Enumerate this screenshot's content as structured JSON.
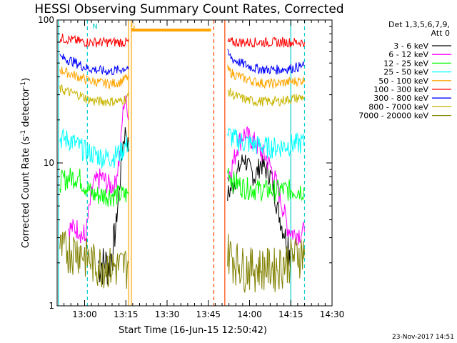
{
  "chart_data": {
    "type": "line",
    "title": "HESSI Observing Summary Count Rates, Corrected",
    "xlabel": "Start Time (16-Jun-15 12:50:42)",
    "ylabel_prefix": "Corrected Count Rate (s",
    "ylabel_sup1": "-1",
    "ylabel_mid": " detector",
    "ylabel_sup2": "-1",
    "ylabel_suffix": ")",
    "yscale": "log",
    "ylim": [
      1,
      100
    ],
    "xlim_minutes": [
      770,
      870
    ],
    "x_ticks": [
      {
        "t": 780,
        "label": "13:00"
      },
      {
        "t": 795,
        "label": "13:15"
      },
      {
        "t": 810,
        "label": "13:30"
      },
      {
        "t": 825,
        "label": "13:45"
      },
      {
        "t": 840,
        "label": "14:00"
      },
      {
        "t": 855,
        "label": "14:15"
      },
      {
        "t": 870,
        "label": "14:30"
      }
    ],
    "y_ticks": [
      {
        "v": 1,
        "label": "1"
      },
      {
        "v": 10,
        "label": "10"
      },
      {
        "v": 100,
        "label": "100"
      }
    ],
    "legend_header": [
      "Det 1,3,5,6,7,9,",
      "Att 0"
    ],
    "legend_position": "right",
    "series": [
      {
        "name": "3 - 6 keV",
        "color": "#000000",
        "segments": [
          [
            [
              785,
              2.0
            ],
            [
              789,
              2.0
            ],
            [
              791,
              3.0
            ],
            [
              793,
              8.0
            ],
            [
              794,
              14.0
            ],
            [
              795,
              17.0
            ],
            [
              796,
              12.0
            ]
          ],
          [
            [
              832,
              6.0
            ],
            [
              834,
              7.0
            ],
            [
              836,
              9.0
            ],
            [
              838,
              11.0
            ],
            [
              840,
              9.0
            ],
            [
              842,
              8.0
            ],
            [
              844,
              10.0
            ],
            [
              846,
              9.0
            ],
            [
              848,
              8.0
            ],
            [
              850,
              5.0
            ],
            [
              852,
              3.5
            ],
            [
              855,
              2.5
            ]
          ]
        ]
      },
      {
        "name": "6 - 12 keV",
        "color": "#ff00ff",
        "segments": [
          [
            [
              774,
              3.5
            ],
            [
              778,
              3.5
            ],
            [
              780,
              2.8
            ],
            [
              783,
              7.0
            ],
            [
              786,
              8.0
            ],
            [
              789,
              7.0
            ],
            [
              791,
              7.0
            ],
            [
              793,
              12.0
            ],
            [
              794,
              24.0
            ],
            [
              795,
              28.0
            ],
            [
              796,
              20.0
            ]
          ],
          [
            [
              832,
              8.0
            ],
            [
              834,
              10.0
            ],
            [
              836,
              14.0
            ],
            [
              838,
              16.0
            ],
            [
              840,
              15.0
            ],
            [
              842,
              14.0
            ],
            [
              844,
              12.0
            ],
            [
              846,
              11.0
            ],
            [
              848,
              9.0
            ],
            [
              850,
              7.0
            ],
            [
              852,
              5.0
            ],
            [
              854,
              3.5
            ],
            [
              856,
              3.2
            ],
            [
              860,
              3.3
            ]
          ]
        ]
      },
      {
        "name": "12 - 25 keV",
        "color": "#00ff00",
        "segments": [
          [
            [
              771,
              7.5
            ],
            [
              775,
              8.0
            ],
            [
              778,
              8.0
            ],
            [
              780,
              7.0
            ],
            [
              783,
              6.0
            ],
            [
              786,
              6.0
            ],
            [
              790,
              6.0
            ],
            [
              793,
              6.0
            ],
            [
              796,
              6.0
            ]
          ],
          [
            [
              832,
              9.0
            ],
            [
              834,
              7.5
            ],
            [
              838,
              6.8
            ],
            [
              842,
              6.6
            ],
            [
              846,
              6.5
            ],
            [
              850,
              6.5
            ],
            [
              855,
              6.5
            ],
            [
              860,
              6.5
            ]
          ]
        ]
      },
      {
        "name": "25 - 50 keV",
        "color": "#00ffff",
        "segments": [
          [
            [
              771,
              15.0
            ],
            [
              775,
              14.5
            ],
            [
              778,
              13.0
            ],
            [
              781,
              12.0
            ],
            [
              784,
              11.5
            ],
            [
              787,
              11.0
            ],
            [
              790,
              11.0
            ],
            [
              793,
              12.0
            ],
            [
              796,
              14.0
            ]
          ],
          [
            [
              832,
              16.0
            ],
            [
              834,
              15.0
            ],
            [
              838,
              14.0
            ],
            [
              842,
              13.5
            ],
            [
              846,
              13.0
            ],
            [
              850,
              13.0
            ],
            [
              855,
              13.5
            ],
            [
              860,
              14.0
            ]
          ]
        ]
      },
      {
        "name": "50 - 100 keV",
        "color": "#ffa500",
        "segments": [
          [
            [
              771,
              45.0
            ],
            [
              775,
              42.0
            ],
            [
              778,
              40.0
            ],
            [
              781,
              38.0
            ],
            [
              784,
              37.0
            ],
            [
              787,
              36.0
            ],
            [
              790,
              36.0
            ],
            [
              793,
              37.0
            ],
            [
              796,
              40.0
            ]
          ],
          [
            [
              832,
              45.0
            ],
            [
              834,
              42.0
            ],
            [
              838,
              39.0
            ],
            [
              842,
              37.0
            ],
            [
              846,
              36.0
            ],
            [
              850,
              36.0
            ],
            [
              855,
              37.0
            ],
            [
              860,
              38.0
            ]
          ]
        ]
      },
      {
        "name": "100 - 300 keV",
        "color": "#ff0000",
        "segments": [
          [
            [
              771,
              75.0
            ],
            [
              775,
              73.0
            ],
            [
              778,
              71.0
            ],
            [
              781,
              70.0
            ],
            [
              784,
              70.0
            ],
            [
              787,
              70.0
            ],
            [
              790,
              70.0
            ],
            [
              793,
              70.0
            ],
            [
              796,
              70.0
            ]
          ],
          [
            [
              832,
              70.0
            ],
            [
              834,
              70.0
            ],
            [
              838,
              70.0
            ],
            [
              842,
              70.0
            ],
            [
              846,
              70.0
            ],
            [
              850,
              70.0
            ],
            [
              855,
              70.0
            ],
            [
              860,
              70.0
            ]
          ]
        ]
      },
      {
        "name": "300 - 800 keV",
        "color": "#0000ff",
        "segments": [
          [
            [
              771,
              55.0
            ],
            [
              775,
              52.0
            ],
            [
              778,
              49.0
            ],
            [
              781,
              46.0
            ],
            [
              784,
              45.0
            ],
            [
              787,
              44.0
            ],
            [
              790,
              44.0
            ],
            [
              793,
              45.0
            ],
            [
              796,
              47.0
            ]
          ],
          [
            [
              832,
              58.0
            ],
            [
              834,
              53.0
            ],
            [
              838,
              49.0
            ],
            [
              842,
              46.0
            ],
            [
              846,
              45.0
            ],
            [
              850,
              45.0
            ],
            [
              855,
              46.0
            ],
            [
              860,
              48.0
            ]
          ]
        ]
      },
      {
        "name": "800 - 7000 keV",
        "color": "#c8b400",
        "segments": [
          [
            [
              771,
              33.0
            ],
            [
              775,
              31.0
            ],
            [
              778,
              30.0
            ],
            [
              781,
              28.0
            ],
            [
              784,
              27.0
            ],
            [
              787,
              27.0
            ],
            [
              790,
              27.0
            ],
            [
              793,
              27.0
            ],
            [
              796,
              29.0
            ]
          ],
          [
            [
              832,
              32.0
            ],
            [
              834,
              30.0
            ],
            [
              838,
              28.0
            ],
            [
              842,
              27.0
            ],
            [
              846,
              27.0
            ],
            [
              850,
              27.0
            ],
            [
              855,
              28.0
            ],
            [
              860,
              29.0
            ]
          ]
        ]
      },
      {
        "name": "7000 - 20000 keV",
        "color": "#808000",
        "segments": [
          [
            [
              771,
              2.5
            ],
            [
              775,
              2.5
            ],
            [
              778,
              2.5
            ],
            [
              781,
              2.2
            ],
            [
              784,
              2.0
            ],
            [
              787,
              2.0
            ],
            [
              790,
              1.9
            ],
            [
              793,
              1.9
            ],
            [
              796,
              2.0
            ]
          ],
          [
            [
              832,
              2.5
            ],
            [
              834,
              2.2
            ],
            [
              838,
              1.9
            ],
            [
              842,
              1.9
            ],
            [
              846,
              1.9
            ],
            [
              850,
              1.9
            ],
            [
              855,
              2.2
            ],
            [
              860,
              2.5
            ]
          ]
        ]
      }
    ],
    "orange_flare_bar": {
      "t0": 797,
      "t1": 826,
      "value": 85,
      "color": "#ffa500"
    },
    "annotations": [
      {
        "text": "N",
        "t": 782,
        "color": "#00cccc"
      },
      {
        "text": "S",
        "t": 796,
        "color": "#ffa500"
      }
    ],
    "vlines": [
      {
        "t": 770.5,
        "color": "#00cccc",
        "style": "solid"
      },
      {
        "t": 781,
        "color": "#00cccc",
        "style": "dashed"
      },
      {
        "t": 796,
        "color": "#ffa500",
        "style": "solid"
      },
      {
        "t": 797,
        "color": "#ffa500",
        "style": "solid"
      },
      {
        "t": 827,
        "color": "#ff4500",
        "style": "dashed"
      },
      {
        "t": 831,
        "color": "#ff4500",
        "style": "solid"
      },
      {
        "t": 855,
        "color": "#00cccc",
        "style": "solid"
      },
      {
        "t": 860,
        "color": "#00cccc",
        "style": "dashed"
      }
    ],
    "footer_timestamp": "23-Nov-2017 14:51"
  }
}
